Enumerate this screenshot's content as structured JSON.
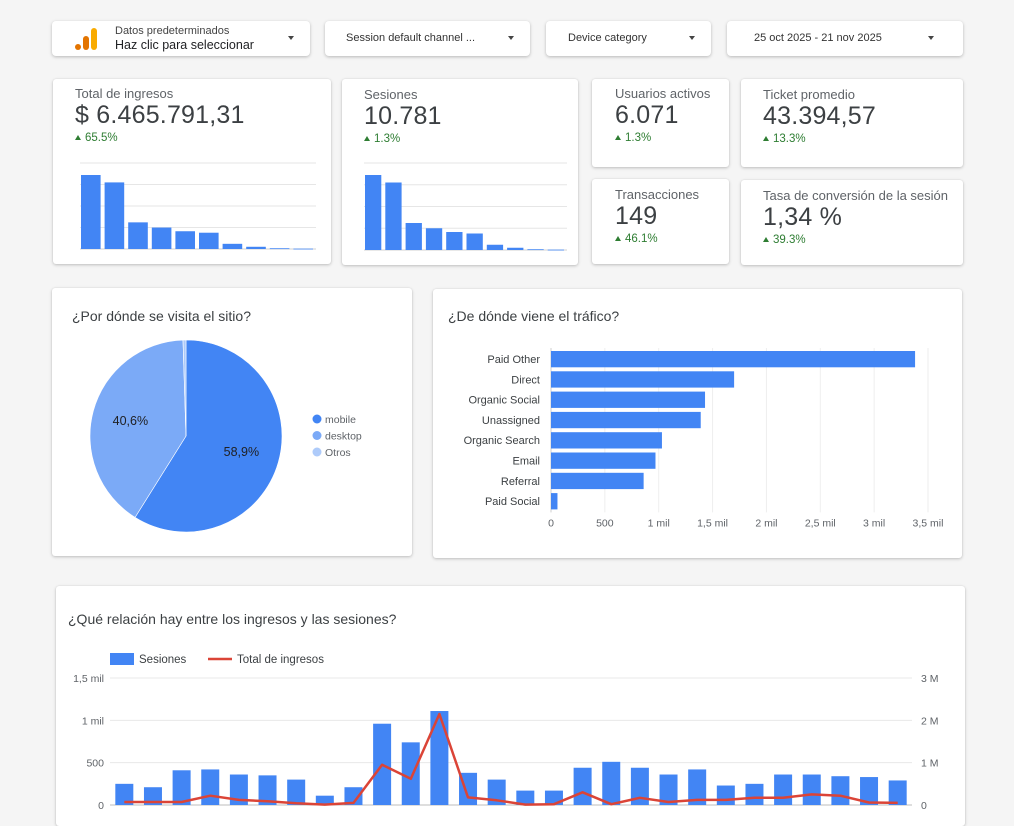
{
  "controls": {
    "data_source": {
      "title": "Datos predeterminados",
      "subtitle": "Haz clic para seleccionar"
    },
    "channel_filter": "Session default channel ...",
    "device_filter": "Device category",
    "date_range": "25 oct 2025 - 21 nov 2025"
  },
  "kpis": {
    "revenue": {
      "title": "Total de ingresos",
      "value": "$ 6.465.791,31",
      "delta": "65.5%"
    },
    "sessions": {
      "title": "Sesiones",
      "value": "10.781",
      "delta": "1.3%"
    },
    "active_users": {
      "title": "Usuarios activos",
      "value": "6.071",
      "delta": "1.3%"
    },
    "avg_ticket": {
      "title": "Ticket promedio",
      "value": "43.394,57",
      "delta": "13.3%"
    },
    "transactions": {
      "title": "Transacciones",
      "value": "149",
      "delta": "46.1%"
    },
    "conversion": {
      "title": "Tasa de conversión de la sesión",
      "value": "1,34 %",
      "delta": "39.3%"
    }
  },
  "colors": {
    "blue": "#4285f4",
    "light_blue": "#7baaf7",
    "pale_blue": "#aecbfa",
    "red": "#db4437",
    "green": "#2e7d32"
  },
  "chart_data": [
    {
      "type": "bar",
      "id": "revenue-mini",
      "values": [
        100,
        90,
        36,
        29,
        24,
        22,
        7,
        3,
        1,
        0.5
      ]
    },
    {
      "type": "bar",
      "id": "sessions-mini",
      "values": [
        100,
        90,
        36,
        29,
        24,
        22,
        7,
        3,
        1,
        0.5
      ]
    },
    {
      "type": "pie",
      "id": "device-pie",
      "title": "¿Por dónde se visita el sitio?",
      "labels": [
        "mobile",
        "desktop",
        "Otros"
      ],
      "values": [
        58.9,
        40.6,
        0.5
      ],
      "data_labels": [
        "58,9%",
        "40,6%",
        ""
      ]
    },
    {
      "type": "bar",
      "id": "traffic-bar",
      "orientation": "horizontal",
      "title": "¿De dónde viene el tráfico?",
      "categories": [
        "Paid Other",
        "Direct",
        "Organic Social",
        "Unassigned",
        "Organic Search",
        "Email",
        "Referral",
        "Paid Social"
      ],
      "values": [
        3380,
        1700,
        1430,
        1390,
        1030,
        970,
        860,
        60
      ],
      "xlim": [
        0,
        3500
      ],
      "x_ticks": [
        "0",
        "500",
        "1 mil",
        "1,5 mil",
        "2 mil",
        "2,5 mil",
        "3 mil",
        "3,5 mil"
      ]
    },
    {
      "type": "bar",
      "id": "combo",
      "title": "¿Qué relación hay entre los ingresos y las sesiones?",
      "legend": [
        "Sesiones",
        "Total de ingresos"
      ],
      "series": [
        {
          "name": "Sesiones",
          "kind": "bar",
          "axis": "left",
          "values": [
            250,
            210,
            410,
            420,
            360,
            350,
            300,
            110,
            210,
            960,
            740,
            1110,
            380,
            300,
            170,
            170,
            440,
            510,
            440,
            360,
            420,
            230,
            250,
            360,
            360,
            340,
            330,
            290
          ]
        },
        {
          "name": "Total de ingresos",
          "kind": "line",
          "axis": "right",
          "values": [
            0.07,
            0.07,
            0.07,
            0.22,
            0.12,
            0.09,
            0.04,
            0.01,
            0.05,
            0.95,
            0.62,
            2.15,
            0.18,
            0.11,
            0.01,
            0.02,
            0.3,
            0.02,
            0.17,
            0.07,
            0.12,
            0.12,
            0.17,
            0.17,
            0.25,
            0.22,
            0.06,
            0.05
          ]
        }
      ],
      "ylim_left": [
        0,
        1500
      ],
      "ylim_right": [
        0,
        3
      ],
      "left_ticks": [
        "0",
        "500",
        "1 mil",
        "1,5 mil"
      ],
      "right_ticks": [
        "0",
        "1 M",
        "2 M",
        "3 M"
      ]
    }
  ]
}
